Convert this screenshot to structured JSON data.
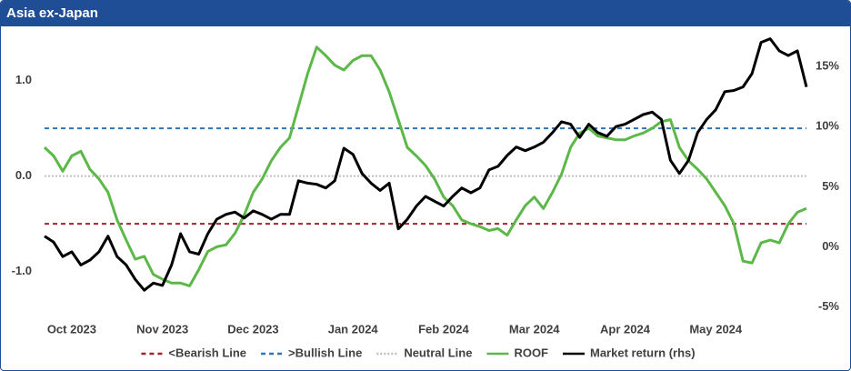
{
  "chart_data": {
    "type": "line",
    "title": "Asia ex-Japan",
    "categories": [
      null,
      null,
      null,
      "Oct 2023",
      null,
      null,
      null,
      null,
      null,
      null,
      null,
      null,
      null,
      "Nov 2023",
      null,
      null,
      null,
      null,
      null,
      null,
      null,
      null,
      null,
      "Dec 2023",
      null,
      null,
      null,
      null,
      null,
      null,
      null,
      null,
      null,
      null,
      "Jan 2024",
      null,
      null,
      null,
      null,
      null,
      null,
      null,
      null,
      null,
      "Feb 2024",
      null,
      null,
      null,
      null,
      null,
      null,
      null,
      null,
      null,
      "Mar 2024",
      null,
      null,
      null,
      null,
      null,
      null,
      null,
      null,
      null,
      "Apr 2024",
      null,
      null,
      null,
      null,
      null,
      null,
      null,
      null,
      null,
      "May 2024",
      null,
      null,
      null,
      null,
      null,
      null,
      null,
      null,
      null,
      null
    ],
    "series": [
      {
        "name": "ROOF",
        "color": "#5cb848",
        "axis": "y",
        "values": [
          0.3,
          0.21,
          0.05,
          0.21,
          0.26,
          0.07,
          -0.03,
          -0.17,
          -0.46,
          -0.67,
          -0.87,
          -0.84,
          -1.03,
          -1.08,
          -1.12,
          -1.12,
          -1.15,
          -0.98,
          -0.79,
          -0.74,
          -0.72,
          -0.6,
          -0.41,
          -0.17,
          -0.03,
          0.16,
          0.3,
          0.4,
          0.73,
          1.07,
          1.35,
          1.26,
          1.16,
          1.11,
          1.21,
          1.26,
          1.26,
          1.11,
          0.88,
          0.59,
          0.3,
          0.21,
          0.11,
          -0.03,
          -0.22,
          -0.31,
          -0.46,
          -0.5,
          -0.53,
          -0.57,
          -0.55,
          -0.62,
          -0.46,
          -0.31,
          -0.22,
          -0.34,
          -0.17,
          0.02,
          0.3,
          0.45,
          0.5,
          0.42,
          0.4,
          0.38,
          0.38,
          0.42,
          0.45,
          0.5,
          0.57,
          0.59,
          0.3,
          0.16,
          0.07,
          -0.03,
          -0.17,
          -0.31,
          -0.5,
          -0.89,
          -0.91,
          -0.7,
          -0.67,
          -0.7,
          -0.5,
          -0.38,
          -0.34
        ]
      },
      {
        "name": "Market return (rhs)",
        "color": "#000000",
        "axis": "y2",
        "values": [
          0.9,
          0.4,
          -0.8,
          -0.4,
          -1.5,
          -1.1,
          -0.4,
          0.9,
          -0.8,
          -1.5,
          -2.7,
          -3.6,
          -3.0,
          -3.2,
          -1.5,
          1.1,
          -0.4,
          -0.6,
          1.1,
          2.3,
          2.7,
          2.9,
          2.4,
          3.0,
          2.7,
          2.3,
          2.7,
          2.7,
          5.5,
          5.3,
          5.2,
          4.9,
          5.5,
          8.2,
          7.7,
          6.1,
          5.3,
          4.7,
          5.3,
          1.5,
          2.3,
          3.4,
          4.2,
          3.8,
          3.4,
          4.2,
          4.9,
          4.5,
          4.9,
          6.4,
          6.7,
          7.6,
          8.3,
          8.0,
          8.3,
          8.7,
          9.5,
          10.4,
          10.2,
          9.1,
          10.2,
          9.5,
          9.2,
          10.0,
          10.2,
          10.6,
          11.0,
          11.2,
          10.6,
          7.2,
          6.1,
          7.2,
          9.5,
          10.6,
          11.4,
          12.9,
          13.0,
          13.3,
          14.4,
          17.0,
          17.3,
          16.3,
          15.9,
          16.3,
          13.3
        ]
      }
    ],
    "reference_lines": [
      {
        "name": "<Bearish Line",
        "value": -0.5,
        "color": "#a3232e",
        "style": "dashed"
      },
      {
        "name": ">Bullish Line",
        "value": 0.5,
        "color": "#2e75b6",
        "style": "dashed"
      },
      {
        "name": "Neutral Line",
        "value": 0,
        "color": "#bfbfbf",
        "style": "dotted"
      }
    ],
    "ylim": [
      -1.46,
      1.5
    ],
    "yticks": [
      {
        "value": -1,
        "label": "-1.0"
      },
      {
        "value": 0,
        "label": "0.0"
      },
      {
        "value": 1,
        "label": "1.0"
      }
    ],
    "y2lim": [
      -5.7,
      17.8
    ],
    "y2ticks": [
      {
        "value": -5,
        "label": "-5%"
      },
      {
        "value": 0,
        "label": "0%"
      },
      {
        "value": 5,
        "label": "5%"
      },
      {
        "value": 10,
        "label": "10%"
      },
      {
        "value": 15,
        "label": "15%"
      }
    ],
    "legend": "bottom"
  }
}
